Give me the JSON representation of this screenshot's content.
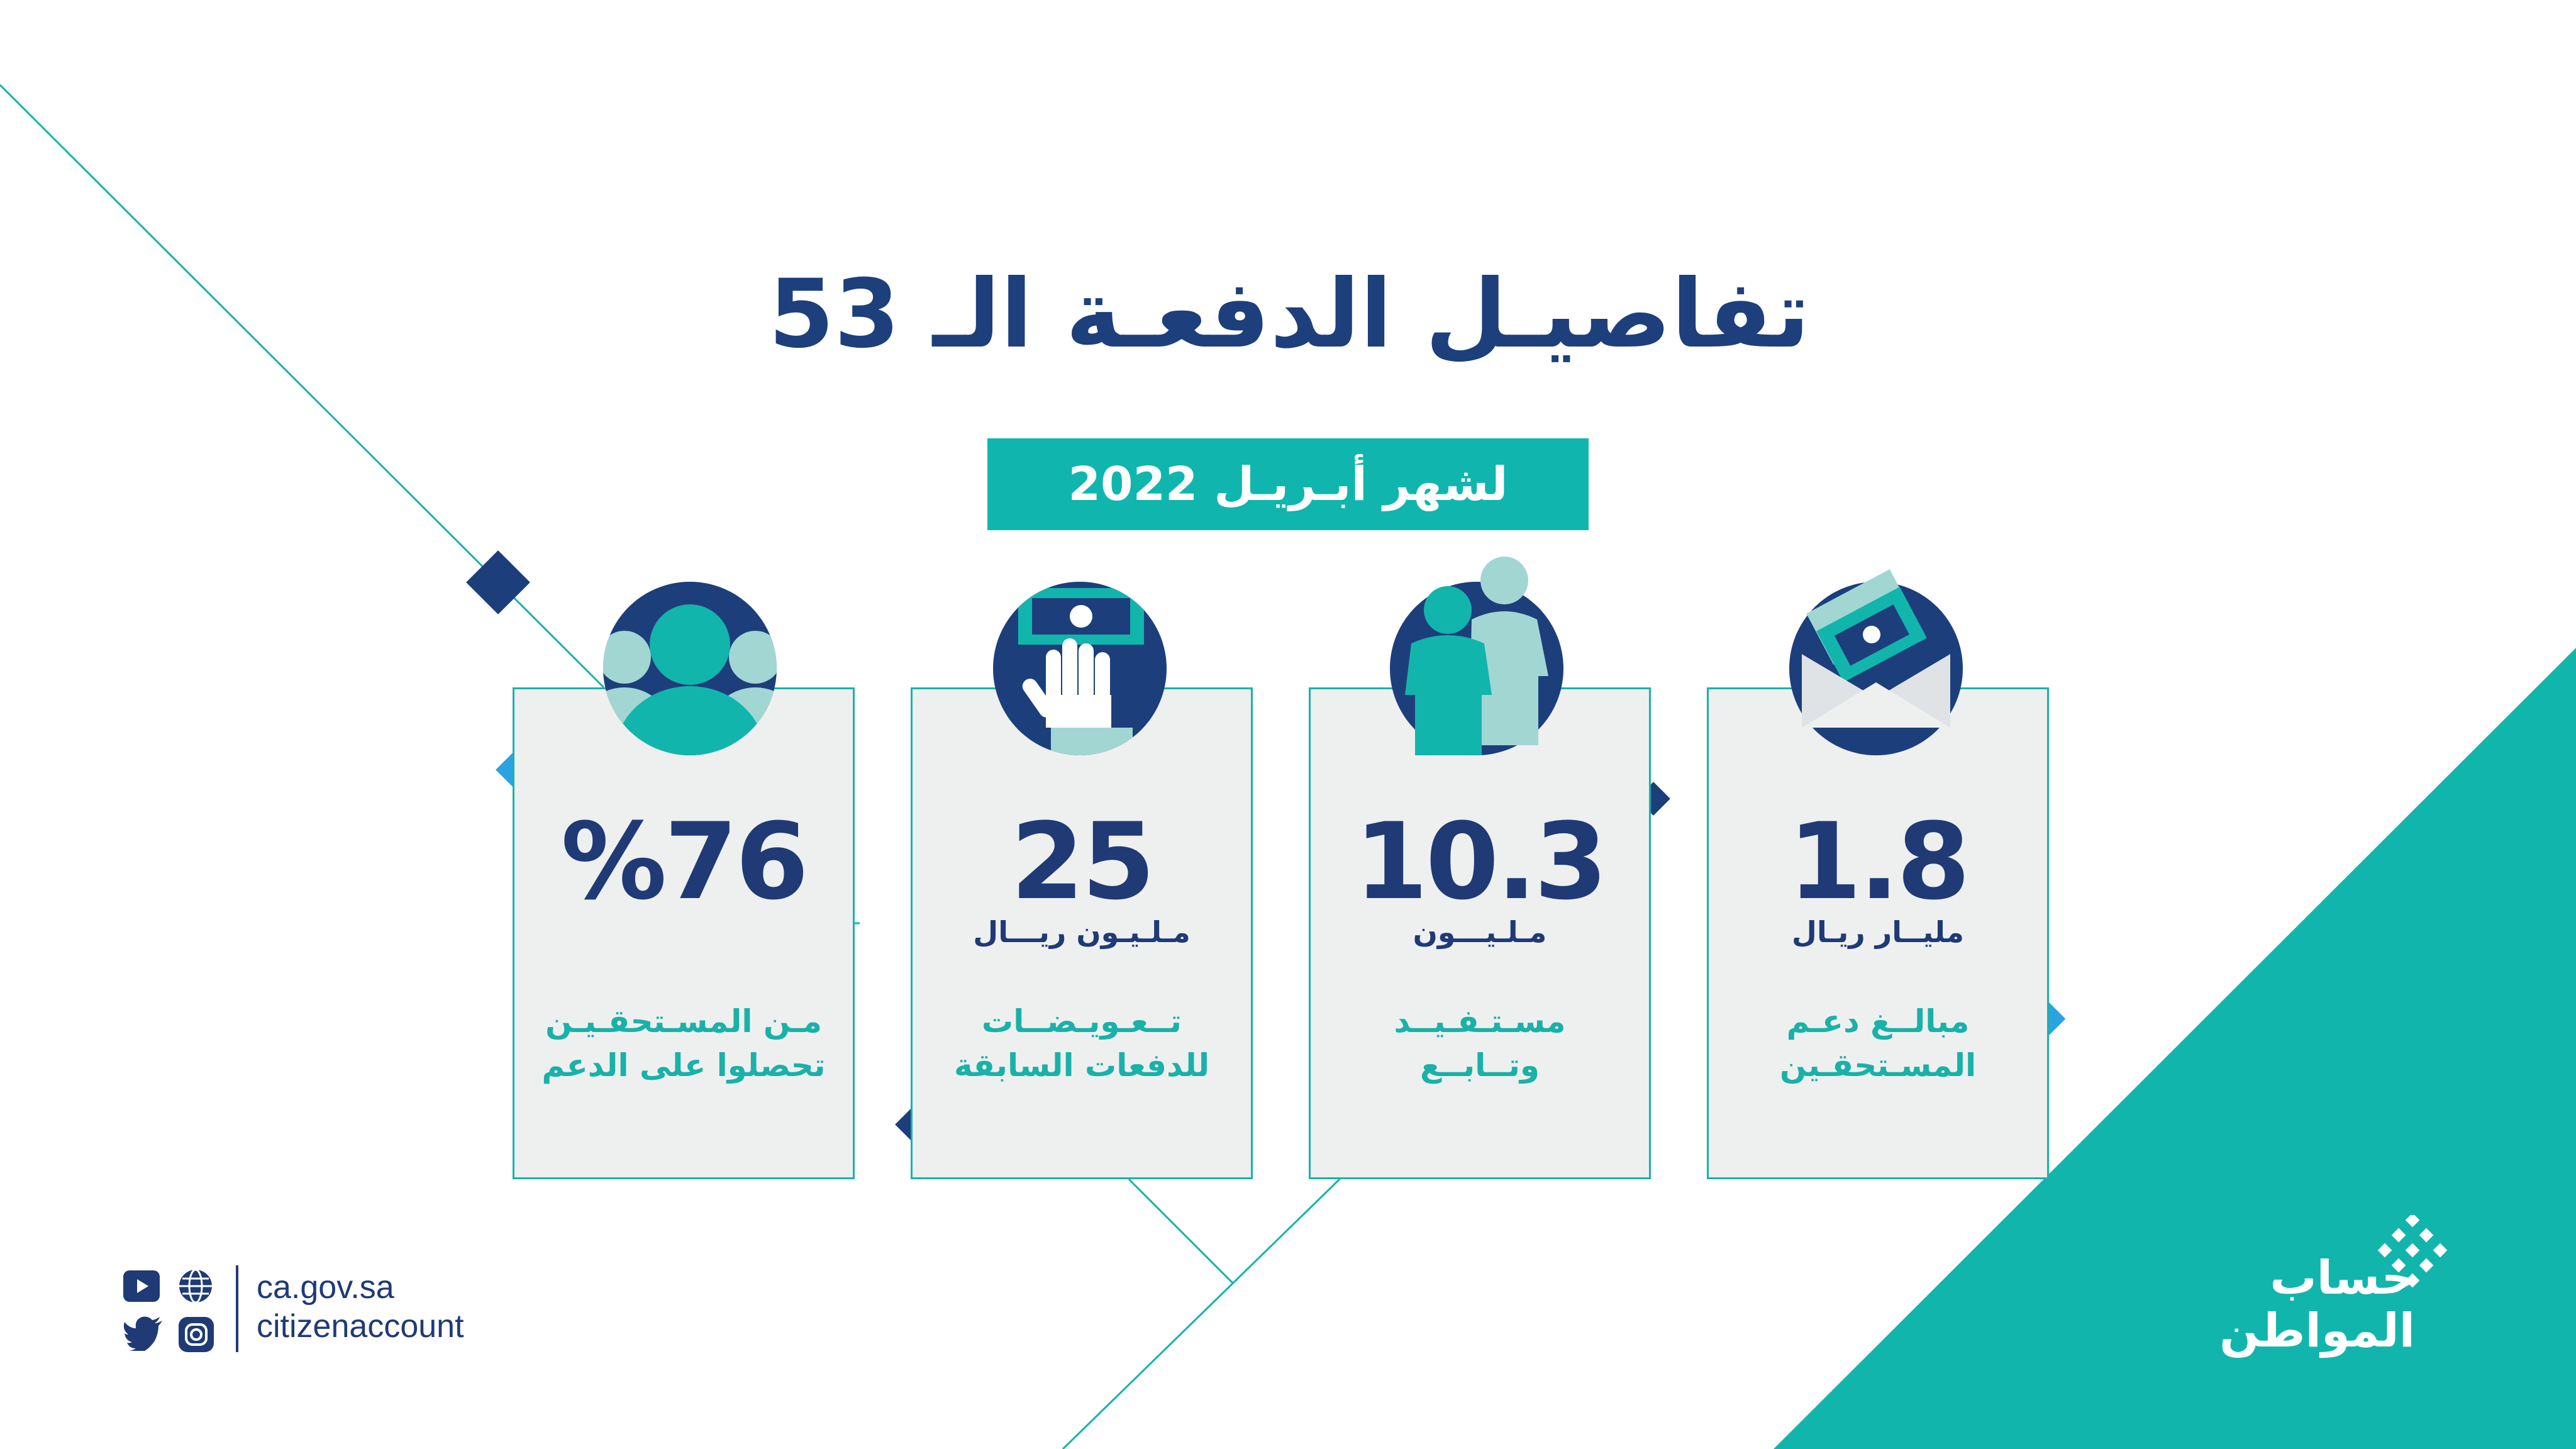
{
  "title": "تفاصيـل الدفعـة الـ 53",
  "subtitle": "لشهر أبـريـل 2022",
  "cards": [
    {
      "value": "1.8",
      "unit": "مليــار ريـال",
      "desc_line1": "مبالــغ دعـم",
      "desc_line2": "المسـتحقـين",
      "icon": "envelope-money-icon"
    },
    {
      "value": "10.3",
      "unit": "مـلـيـــون",
      "desc_line1": "مسـتـفـيــد",
      "desc_line2": "وتــابــع",
      "icon": "people-icon"
    },
    {
      "value": "25",
      "unit": "مـلـيـون ريـــال",
      "desc_line1": "تــعـويـضــات",
      "desc_line2": "للدفعات السابقة",
      "icon": "hand-money-icon"
    },
    {
      "value": "%76",
      "unit": "",
      "desc_line1": "مـن المسـتحقـيـن",
      "desc_line2": "تحصلوا على الدعم",
      "icon": "group-icon"
    }
  ],
  "contact": {
    "website": "ca.gov.sa",
    "handle": "citizenaccount"
  },
  "logo": {
    "line1": "حساب",
    "line2": "المواطن"
  },
  "social_icons": [
    "youtube-icon",
    "globe-icon",
    "twitter-icon",
    "instagram-icon"
  ],
  "colors": {
    "navy": "#1f3a75",
    "teal": "#12b5ac",
    "light_teal": "#9fd8d6",
    "card_bg": "#eef0f0",
    "accent_blue": "#2ba3e0"
  }
}
